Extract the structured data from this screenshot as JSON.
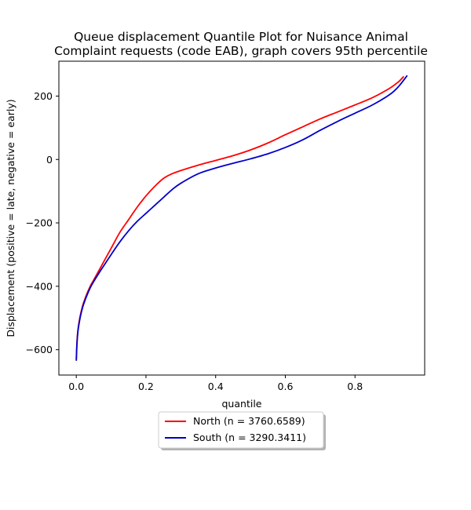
{
  "chart_data": {
    "type": "line",
    "title_line1": "Queue displacement Quantile Plot for Nuisance Animal",
    "title_line2": "Complaint  requests (code EAB), graph covers 95th percentile",
    "xlabel": "quantile",
    "ylabel": "Displacement (positive = late, negative = early)",
    "xlim": [
      -0.05,
      1.0
    ],
    "ylim": [
      -680,
      310
    ],
    "x_ticks": [
      0.0,
      0.2,
      0.4,
      0.6,
      0.8
    ],
    "x_tick_labels": [
      "0.0",
      "0.2",
      "0.4",
      "0.6",
      "0.8"
    ],
    "y_ticks": [
      -600,
      -400,
      -200,
      0,
      200
    ],
    "y_tick_labels": [
      "−600",
      "−400",
      "−200",
      "0",
      "200"
    ],
    "grid": false,
    "legend_position": "bottom-center-below-axes",
    "series": [
      {
        "name": "North (n = 3760.6589)",
        "color": "#ff0000",
        "x": [
          0.0,
          0.002,
          0.005,
          0.01,
          0.015,
          0.02,
          0.03,
          0.04,
          0.05,
          0.07,
          0.1,
          0.125,
          0.15,
          0.175,
          0.2,
          0.225,
          0.25,
          0.275,
          0.3,
          0.35,
          0.4,
          0.45,
          0.5,
          0.55,
          0.6,
          0.65,
          0.7,
          0.75,
          0.8,
          0.85,
          0.9,
          0.925,
          0.94
        ],
        "y": [
          -630,
          -575,
          -535,
          -500,
          -475,
          -455,
          -425,
          -400,
          -380,
          -340,
          -280,
          -230,
          -190,
          -150,
          -115,
          -85,
          -60,
          -45,
          -35,
          -18,
          -3,
          12,
          30,
          52,
          78,
          103,
          128,
          150,
          172,
          195,
          225,
          245,
          262
        ]
      },
      {
        "name": "South (n = 3290.3411)",
        "color": "#0000cc",
        "x": [
          0.0,
          0.002,
          0.005,
          0.01,
          0.015,
          0.02,
          0.03,
          0.04,
          0.05,
          0.07,
          0.1,
          0.125,
          0.15,
          0.175,
          0.2,
          0.225,
          0.25,
          0.275,
          0.3,
          0.35,
          0.4,
          0.45,
          0.5,
          0.55,
          0.6,
          0.65,
          0.7,
          0.75,
          0.8,
          0.85,
          0.9,
          0.925,
          0.95
        ],
        "y": [
          -635,
          -580,
          -540,
          -505,
          -480,
          -460,
          -430,
          -405,
          -385,
          -350,
          -300,
          -260,
          -225,
          -195,
          -170,
          -145,
          -120,
          -95,
          -75,
          -45,
          -27,
          -12,
          2,
          18,
          38,
          62,
          92,
          120,
          146,
          172,
          205,
          230,
          265
        ]
      }
    ]
  }
}
